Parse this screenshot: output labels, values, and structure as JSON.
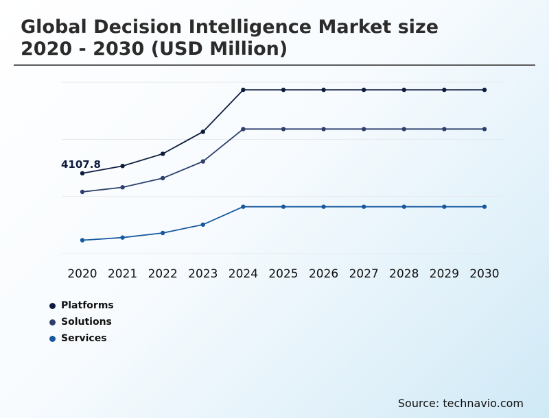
{
  "title_line1": "Global Decision Intelligence Market size",
  "title_line2": "2020 - 2030 (USD Million)",
  "source": "Source: technavio.com",
  "chart_data": {
    "type": "line",
    "x": [
      "2020",
      "2021",
      "2022",
      "2023",
      "2024",
      "2025",
      "2026",
      "2027",
      "2028",
      "2029",
      "2030"
    ],
    "series": [
      {
        "name": "Platforms",
        "color": "#0d1b3e",
        "values": [
          4107.8,
          4300,
          4620,
          5200,
          6300,
          6300,
          6300,
          6300,
          6300,
          6300,
          6300
        ]
      },
      {
        "name": "Solutions",
        "color": "#2e3f6e",
        "values": [
          3620,
          3740,
          3980,
          4420,
          5270,
          5270,
          5270,
          5270,
          5270,
          5270,
          5270
        ]
      },
      {
        "name": "Services",
        "color": "#17589e",
        "values": [
          2350,
          2420,
          2540,
          2760,
          3230,
          3230,
          3230,
          3230,
          3230,
          3230,
          3230
        ]
      }
    ],
    "annotations": [
      {
        "series": "Platforms",
        "x": "2020",
        "text": "4107.8"
      }
    ],
    "ylim": [
      2000,
      6500
    ],
    "grid": true,
    "legend": "bottom-left"
  }
}
